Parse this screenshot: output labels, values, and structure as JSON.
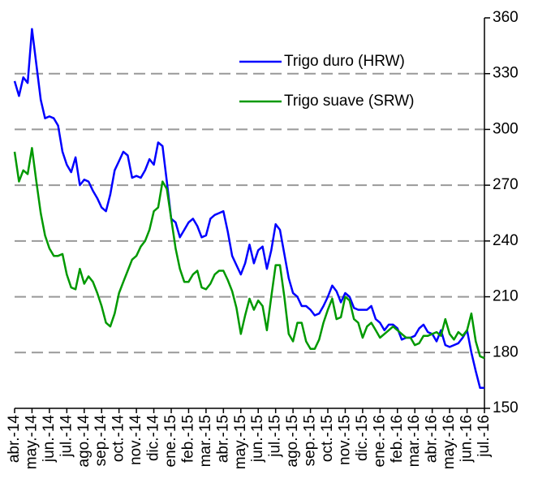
{
  "chart_data": {
    "type": "line",
    "categories": [
      "abr.-14",
      null,
      null,
      null,
      "may.-14",
      null,
      null,
      null,
      "jun.-14",
      null,
      null,
      null,
      "jul.-14",
      null,
      null,
      null,
      "ago.-14",
      null,
      null,
      null,
      "sep.-14",
      null,
      null,
      null,
      "oct.-14",
      null,
      null,
      null,
      "nov.-14",
      null,
      null,
      null,
      "dic.-14",
      null,
      null,
      null,
      "ene.-15",
      null,
      null,
      null,
      "feb.-15",
      null,
      null,
      null,
      "mar.-15",
      null,
      null,
      null,
      "abr.-15",
      null,
      null,
      null,
      "may.-15",
      null,
      null,
      null,
      "jun.-15",
      null,
      null,
      null,
      "jul.-15",
      null,
      null,
      null,
      "ago.-15",
      null,
      null,
      null,
      "sep.-15",
      null,
      null,
      null,
      "oct.-15",
      null,
      null,
      null,
      "nov.-15",
      null,
      null,
      null,
      "dic.-15",
      null,
      null,
      null,
      "ene.-16",
      null,
      null,
      null,
      "feb.-16",
      null,
      null,
      null,
      "mar.-16",
      null,
      null,
      null,
      "abr.-16",
      null,
      null,
      null,
      "may.-16",
      null,
      null,
      null,
      "jun.-16",
      null,
      null,
      null,
      "jul.-16"
    ],
    "series": [
      {
        "name": "Trigo duro (HRW)",
        "color": "#0000ff",
        "values": [
          326,
          318,
          328,
          325,
          354,
          335,
          316,
          306,
          307,
          306,
          302,
          288,
          281,
          277,
          285,
          270,
          273,
          272,
          267,
          263,
          258,
          256,
          265,
          278,
          283,
          288,
          286,
          274,
          275,
          274,
          278,
          284,
          281,
          293,
          291,
          272,
          252,
          250,
          242,
          246,
          250,
          252,
          248,
          242,
          243,
          252,
          254,
          255,
          256,
          245,
          232,
          227,
          222,
          228,
          238,
          228,
          235,
          237,
          225,
          235,
          249,
          246,
          233,
          220,
          212,
          210,
          205,
          205,
          203,
          200,
          201,
          205,
          210,
          216,
          213,
          207,
          212,
          210,
          204,
          203,
          203,
          203,
          205,
          198,
          196,
          192,
          195,
          195,
          193,
          187,
          188,
          188,
          189,
          193,
          195,
          191,
          190,
          186,
          192,
          184,
          183,
          184,
          185,
          188,
          192,
          180,
          170,
          161,
          161
        ]
      },
      {
        "name": "Trigo suave (SRW)",
        "color": "#009900",
        "values": [
          288,
          272,
          278,
          276,
          290,
          272,
          255,
          243,
          236,
          232,
          232,
          233,
          222,
          215,
          214,
          225,
          217,
          221,
          218,
          212,
          205,
          196,
          194,
          201,
          212,
          218,
          224,
          230,
          232,
          237,
          240,
          246,
          256,
          258,
          272,
          268,
          252,
          236,
          225,
          218,
          218,
          222,
          224,
          215,
          214,
          217,
          222,
          224,
          224,
          219,
          213,
          204,
          190,
          200,
          209,
          203,
          208,
          205,
          192,
          210,
          227,
          227,
          210,
          190,
          186,
          196,
          196,
          186,
          182,
          182,
          187,
          196,
          203,
          209,
          198,
          199,
          210,
          208,
          198,
          196,
          188,
          194,
          196,
          192,
          188,
          190,
          192,
          194,
          192,
          190,
          188,
          188,
          184,
          185,
          189,
          189,
          190,
          191,
          189,
          198,
          190,
          187,
          191,
          189,
          192,
          201,
          186,
          178,
          177
        ]
      }
    ],
    "ylim": [
      150,
      360
    ],
    "yticks": [
      150,
      180,
      210,
      240,
      270,
      300,
      330,
      360
    ],
    "grid": true
  }
}
